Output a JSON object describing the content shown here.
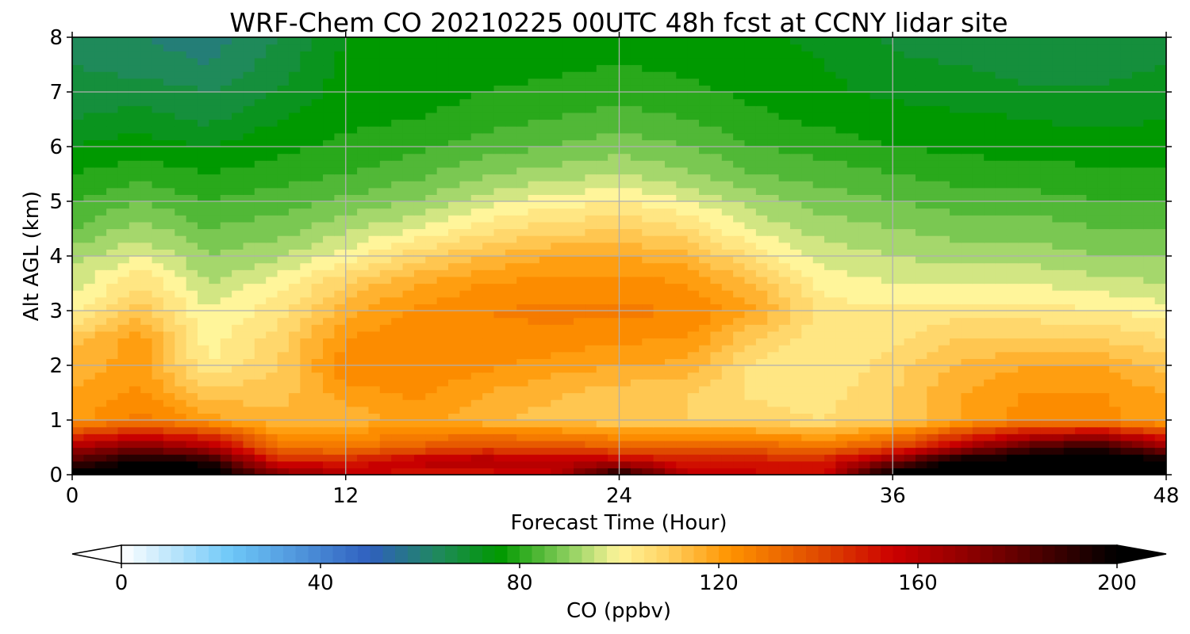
{
  "chart_data": {
    "type": "heatmap",
    "title": "WRF-Chem CO  20210225 00UTC 48h fcst at CCNY lidar site",
    "xlabel": "Forecast Time (Hour)",
    "ylabel": "Alt AGL (km)",
    "xlim": [
      0,
      48
    ],
    "ylim": [
      0,
      8
    ],
    "x_ticks": [
      0,
      12,
      24,
      36,
      48
    ],
    "x_tick_labels": [
      "0",
      "12",
      "24",
      "36",
      "48"
    ],
    "y_ticks": [
      0,
      1,
      2,
      3,
      4,
      5,
      6,
      7,
      8
    ],
    "y_tick_labels": [
      "0",
      "1",
      "2",
      "3",
      "4",
      "5",
      "6",
      "7",
      "8"
    ],
    "grid": true,
    "x": [
      0,
      3,
      6,
      9,
      12,
      15,
      18,
      21,
      24,
      27,
      30,
      33,
      36,
      39,
      42,
      45,
      48
    ],
    "y": [
      0,
      0.25,
      0.5,
      1,
      1.5,
      2,
      2.5,
      3,
      3.5,
      4,
      4.5,
      5,
      5.5,
      6,
      6.5,
      7,
      7.5,
      8
    ],
    "z": [
      [
        205,
        205,
        205,
        175,
        160,
        150,
        150,
        155,
        200,
        160,
        155,
        155,
        205,
        205,
        205,
        205,
        205
      ],
      [
        185,
        200,
        195,
        150,
        150,
        160,
        165,
        160,
        160,
        150,
        150,
        150,
        175,
        205,
        205,
        205,
        205
      ],
      [
        165,
        175,
        165,
        130,
        128,
        135,
        140,
        140,
        135,
        135,
        135,
        130,
        140,
        165,
        185,
        195,
        170
      ],
      [
        120,
        128,
        120,
        115,
        115,
        120,
        115,
        112,
        110,
        110,
        108,
        106,
        110,
        118,
        125,
        125,
        118
      ],
      [
        118,
        123,
        112,
        112,
        120,
        123,
        118,
        115,
        112,
        110,
        105,
        104,
        110,
        118,
        122,
        122,
        118
      ],
      [
        116,
        120,
        102,
        110,
        125,
        126,
        123,
        120,
        118,
        117,
        105,
        102,
        108,
        115,
        118,
        118,
        112
      ],
      [
        112,
        120,
        100,
        108,
        122,
        125,
        125,
        125,
        123,
        122,
        110,
        103,
        105,
        110,
        110,
        110,
        106
      ],
      [
        100,
        112,
        98,
        104,
        116,
        123,
        126,
        127,
        127,
        126,
        118,
        104,
        103,
        104,
        104,
        102,
        100
      ],
      [
        96,
        106,
        94,
        100,
        110,
        118,
        122,
        124,
        124,
        122,
        114,
        100,
        98,
        98,
        98,
        96,
        94
      ],
      [
        92,
        98,
        90,
        93,
        100,
        108,
        114,
        118,
        118,
        116,
        104,
        96,
        94,
        92,
        92,
        90,
        90
      ],
      [
        86,
        92,
        86,
        88,
        93,
        98,
        104,
        108,
        110,
        106,
        97,
        92,
        90,
        88,
        88,
        86,
        86
      ],
      [
        82,
        86,
        82,
        84,
        87,
        90,
        96,
        100,
        102,
        98,
        92,
        88,
        86,
        84,
        84,
        82,
        82
      ],
      [
        78,
        80,
        78,
        80,
        82,
        85,
        89,
        92,
        94,
        91,
        86,
        84,
        82,
        80,
        79,
        79,
        79
      ],
      [
        74,
        76,
        74,
        77,
        79,
        81,
        84,
        86,
        88,
        86,
        82,
        80,
        78,
        77,
        77,
        76,
        76
      ],
      [
        70,
        72,
        69,
        74,
        77,
        78,
        80,
        82,
        84,
        82,
        79,
        77,
        76,
        75,
        74,
        73,
        74
      ],
      [
        68,
        68,
        66,
        70,
        76,
        76,
        78,
        79,
        80,
        79,
        77,
        75,
        73,
        72,
        71,
        71,
        72
      ],
      [
        66,
        64,
        62,
        68,
        75,
        75,
        76,
        77,
        78,
        77,
        76,
        74,
        71,
        70,
        68,
        68,
        70
      ],
      [
        64,
        62,
        60,
        66,
        74,
        75,
        75,
        76,
        77,
        76,
        75,
        73,
        69,
        67,
        67,
        67,
        69
      ]
    ],
    "colorbar": {
      "label": "CO  (ppbv)",
      "ticks": [
        0,
        40,
        80,
        120,
        160,
        200
      ],
      "tick_labels": [
        "0",
        "40",
        "80",
        "120",
        "160",
        "200"
      ],
      "range": [
        0,
        200
      ],
      "extend": "both",
      "stops": [
        {
          "v": 0,
          "color": "#ffffff"
        },
        {
          "v": 22,
          "color": "#6ec8f8"
        },
        {
          "v": 50,
          "color": "#2f5fbe"
        },
        {
          "v": 64,
          "color": "#1f8a5a"
        },
        {
          "v": 76,
          "color": "#009900"
        },
        {
          "v": 90,
          "color": "#8ed060"
        },
        {
          "v": 100,
          "color": "#fff59a"
        },
        {
          "v": 110,
          "color": "#ffd060"
        },
        {
          "v": 122,
          "color": "#ff9400"
        },
        {
          "v": 140,
          "color": "#e04a00"
        },
        {
          "v": 155,
          "color": "#cc0000"
        },
        {
          "v": 175,
          "color": "#7a0000"
        },
        {
          "v": 200,
          "color": "#000000"
        }
      ]
    }
  }
}
